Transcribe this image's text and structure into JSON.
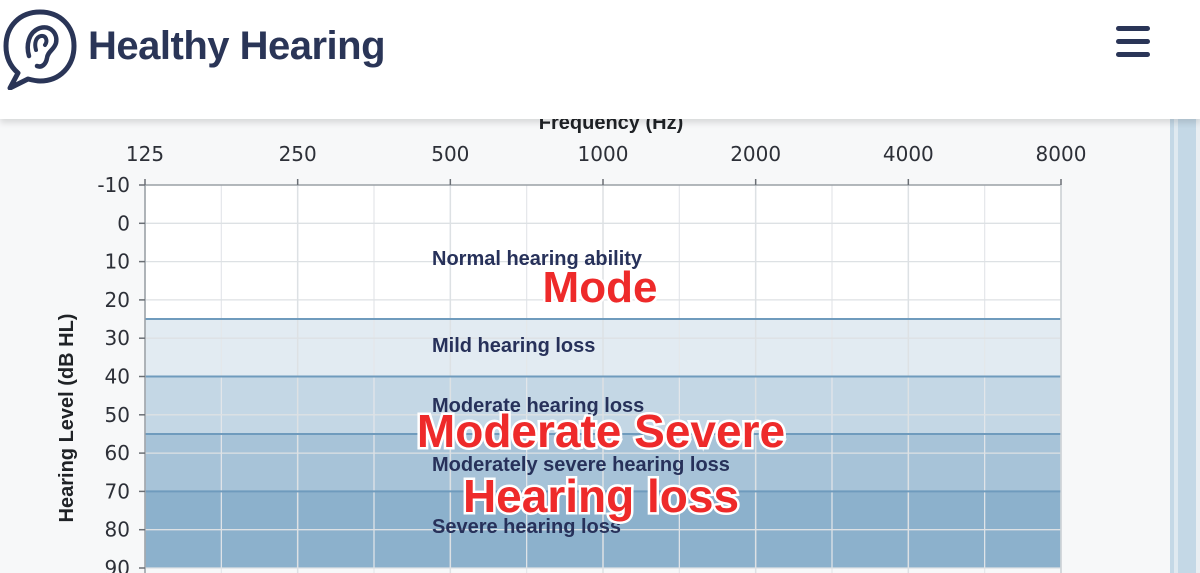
{
  "header": {
    "brand": "Healthy Hearing",
    "logo_icon": "ear-speech-bubble-icon",
    "menu_icon": "hamburger-menu-icon",
    "brand_color": "#2a3557"
  },
  "chart_data": {
    "type": "audiogram",
    "xlabel": "Frequency (Hz)",
    "ylabel": "Hearing Level (dB HL)",
    "x_ticks": [
      "125",
      "250",
      "500",
      "1000",
      "2000",
      "4000",
      "8000"
    ],
    "x_scale": "log2",
    "y_ticks": [
      "-10",
      "0",
      "10",
      "20",
      "30",
      "40",
      "50",
      "60",
      "70",
      "80",
      "90"
    ],
    "ylim": [
      -10,
      90
    ],
    "y_inverted": true,
    "grid": true,
    "bands": [
      {
        "label": "Normal hearing ability",
        "from": -10,
        "to": 25,
        "color": "#ffffff"
      },
      {
        "label": "Mild hearing loss",
        "from": 25,
        "to": 40,
        "color": "#e2ebf2"
      },
      {
        "label": "Moderate hearing loss",
        "from": 40,
        "to": 55,
        "color": "#c4d7e5"
      },
      {
        "label": "Moderately severe hearing loss",
        "from": 55,
        "to": 70,
        "color": "#a7c3d8"
      },
      {
        "label": "Severe hearing loss",
        "from": 70,
        "to": 90,
        "color": "#8cb1cc"
      }
    ],
    "annotations": [
      "Mode",
      "Moderate Severe",
      "Hearing loss"
    ],
    "annotation_color": "#ee2a2a"
  }
}
